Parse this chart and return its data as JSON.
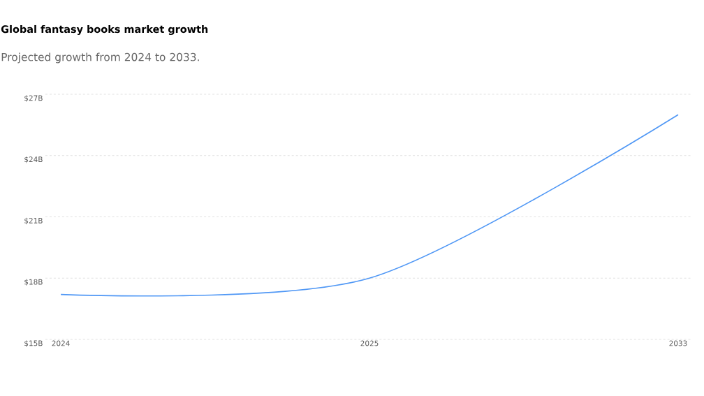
{
  "chart_data": {
    "type": "line",
    "title": "Global fantasy books market growth",
    "subtitle": "Projected growth from 2024 to 2033.",
    "categories": [
      "2024",
      "2025",
      "2033"
    ],
    "series": [
      {
        "color": "#4f97f5",
        "values": [
          17.2,
          18,
          26
        ]
      }
    ],
    "ylim": [
      15,
      27
    ],
    "yticks": [
      {
        "value": 15,
        "label": "$15B"
      },
      {
        "value": 18,
        "label": "$18B"
      },
      {
        "value": 21,
        "label": "$21B"
      },
      {
        "value": 24,
        "label": "$24B"
      },
      {
        "value": 27,
        "label": "$27B"
      }
    ],
    "grid": "y"
  }
}
